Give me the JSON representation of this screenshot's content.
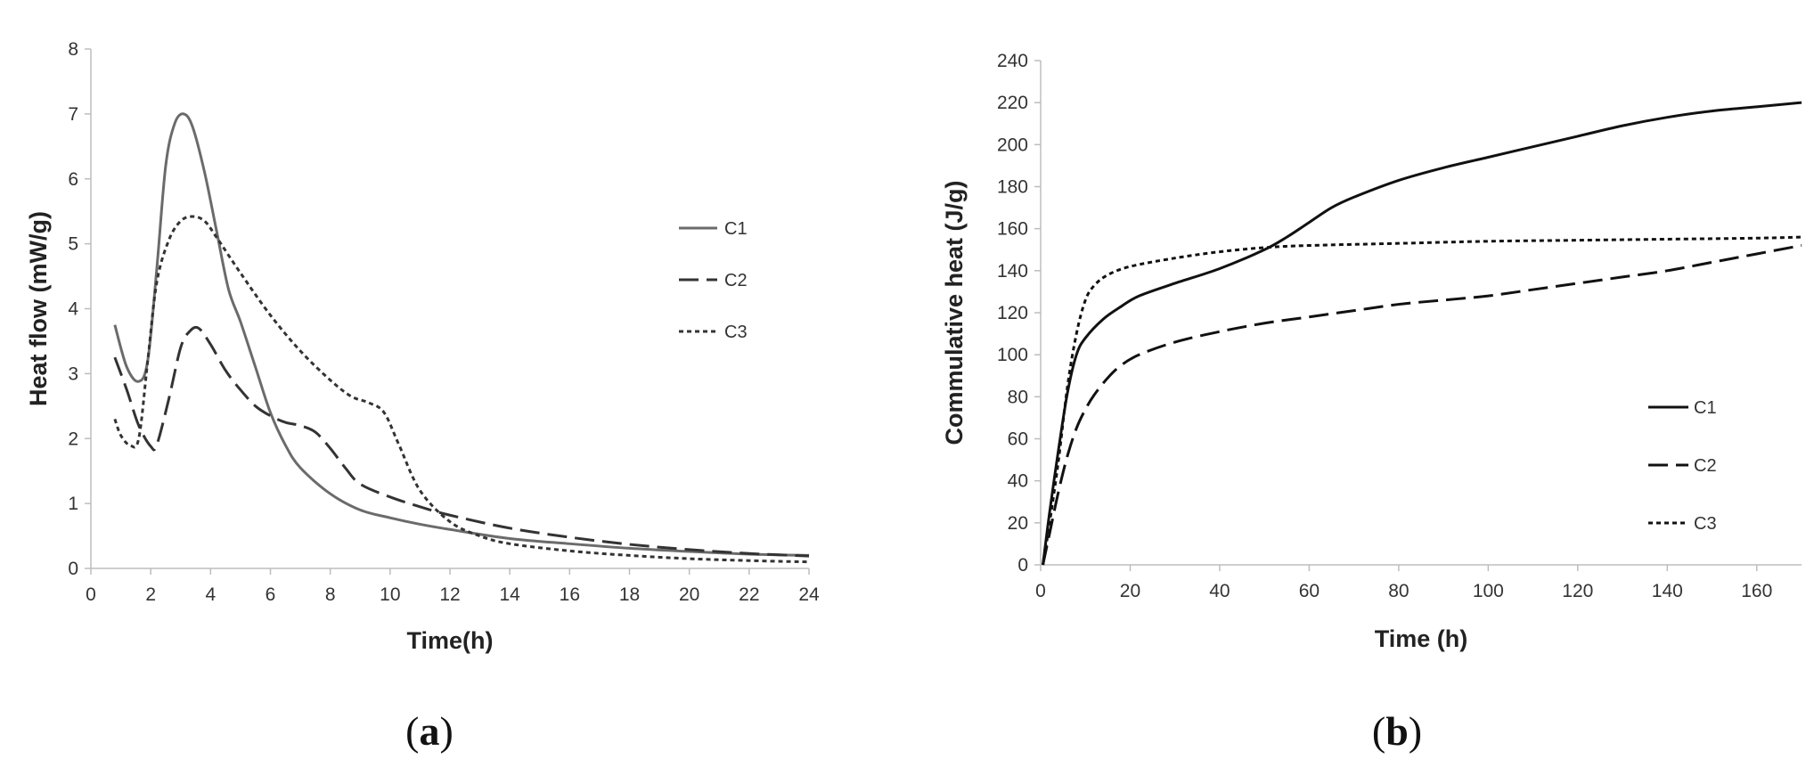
{
  "chart_data": [
    {
      "type": "line",
      "panel_label": {
        "open": "(",
        "letter": "a",
        "close": ")"
      },
      "xlabel": "Time(h)",
      "ylabel": "Heat flow (mW/g)",
      "xlim": [
        0,
        24
      ],
      "ylim": [
        0,
        8
      ],
      "xticks": [
        0,
        2,
        4,
        6,
        8,
        10,
        12,
        14,
        16,
        18,
        20,
        22,
        24
      ],
      "yticks": [
        0,
        1,
        2,
        3,
        4,
        5,
        6,
        7,
        8
      ],
      "grid": false,
      "legend_position": "right",
      "series": [
        {
          "name": "C1",
          "style": "solid",
          "color": "#6b6b6b",
          "x": [
            0.8,
            1.2,
            1.6,
            1.9,
            2.2,
            2.5,
            2.8,
            3.1,
            3.4,
            3.8,
            4.2,
            4.6,
            5.0,
            5.5,
            6.0,
            6.5,
            7.0,
            8.0,
            9.0,
            10.0,
            11.0,
            12.0,
            14.0,
            16.0,
            18.0,
            20.0,
            22.0,
            24.0
          ],
          "y": [
            3.75,
            3.1,
            2.88,
            3.2,
            4.6,
            6.2,
            6.85,
            7.0,
            6.8,
            6.1,
            5.2,
            4.3,
            3.8,
            3.1,
            2.4,
            1.9,
            1.55,
            1.15,
            0.9,
            0.78,
            0.68,
            0.6,
            0.46,
            0.38,
            0.31,
            0.26,
            0.22,
            0.2
          ]
        },
        {
          "name": "C2",
          "style": "dashed",
          "color": "#333333",
          "x": [
            0.8,
            1.2,
            1.6,
            2.0,
            2.2,
            2.6,
            3.0,
            3.3,
            3.6,
            4.0,
            4.5,
            5.0,
            5.5,
            6.0,
            6.5,
            7.0,
            7.5,
            8.0,
            8.5,
            9.0,
            10.0,
            11.0,
            12.0,
            14.0,
            16.0,
            18.0,
            20.0,
            22.0,
            24.0
          ],
          "y": [
            3.25,
            2.75,
            2.2,
            1.88,
            1.9,
            2.6,
            3.4,
            3.65,
            3.7,
            3.45,
            3.05,
            2.75,
            2.5,
            2.35,
            2.25,
            2.2,
            2.1,
            1.85,
            1.55,
            1.3,
            1.1,
            0.95,
            0.82,
            0.62,
            0.48,
            0.37,
            0.29,
            0.23,
            0.19
          ]
        },
        {
          "name": "C3",
          "style": "dotted",
          "color": "#333333",
          "x": [
            0.8,
            1.0,
            1.3,
            1.6,
            1.9,
            2.2,
            2.6,
            3.0,
            3.4,
            3.8,
            4.2,
            5.0,
            6.0,
            7.0,
            8.0,
            8.7,
            9.3,
            9.8,
            10.3,
            11.0,
            12.0,
            13.0,
            14.0,
            16.0,
            18.0,
            20.0,
            22.0,
            24.0
          ],
          "y": [
            2.3,
            2.05,
            1.9,
            2.0,
            3.2,
            4.4,
            5.05,
            5.35,
            5.42,
            5.35,
            5.1,
            4.55,
            3.9,
            3.35,
            2.9,
            2.65,
            2.55,
            2.4,
            1.9,
            1.2,
            0.72,
            0.5,
            0.38,
            0.27,
            0.2,
            0.15,
            0.12,
            0.1
          ]
        }
      ]
    },
    {
      "type": "line",
      "panel_label": {
        "open": "(",
        "letter": "b",
        "close": ")"
      },
      "xlabel": "Time (h)",
      "ylabel": "Commulative heat (J/g)",
      "xlim": [
        0,
        170
      ],
      "ylim": [
        0,
        240
      ],
      "xticks": [
        0,
        20,
        40,
        60,
        80,
        100,
        120,
        140,
        160
      ],
      "yticks": [
        0,
        20,
        40,
        60,
        80,
        100,
        120,
        140,
        160,
        180,
        200,
        220,
        240
      ],
      "grid": false,
      "legend_position": "bottom-right",
      "series": [
        {
          "name": "C1",
          "style": "solid",
          "color": "#111111",
          "x": [
            0.5,
            2,
            4,
            6,
            8,
            10,
            14,
            18,
            22,
            30,
            40,
            50,
            55,
            60,
            65,
            70,
            80,
            90,
            100,
            110,
            120,
            130,
            140,
            150,
            160,
            170
          ],
          "y": [
            0,
            25,
            55,
            82,
            100,
            108,
            117,
            123,
            128,
            134,
            141,
            150,
            156,
            163,
            170,
            175,
            183,
            189,
            194,
            199,
            204,
            209,
            213,
            216,
            218,
            220
          ]
        },
        {
          "name": "C2",
          "style": "dashed",
          "color": "#111111",
          "x": [
            0.5,
            2,
            4,
            6,
            8,
            10,
            12,
            15,
            18,
            22,
            30,
            40,
            50,
            60,
            70,
            80,
            90,
            100,
            110,
            120,
            130,
            140,
            150,
            160,
            170
          ],
          "y": [
            0,
            15,
            35,
            52,
            65,
            74,
            81,
            89,
            95,
            100,
            106,
            111,
            115,
            118,
            121,
            124,
            126,
            128,
            131,
            134,
            137,
            140,
            144,
            148,
            152
          ]
        },
        {
          "name": "C3",
          "style": "dotted",
          "color": "#111111",
          "x": [
            0.5,
            2,
            4,
            6,
            8,
            10,
            12,
            15,
            20,
            30,
            40,
            50,
            60,
            80,
            100,
            120,
            140,
            160,
            170
          ],
          "y": [
            0,
            20,
            50,
            85,
            110,
            126,
            133,
            138,
            142,
            146,
            149,
            151,
            152,
            153,
            154,
            154.5,
            155,
            155.5,
            156
          ]
        }
      ]
    }
  ]
}
